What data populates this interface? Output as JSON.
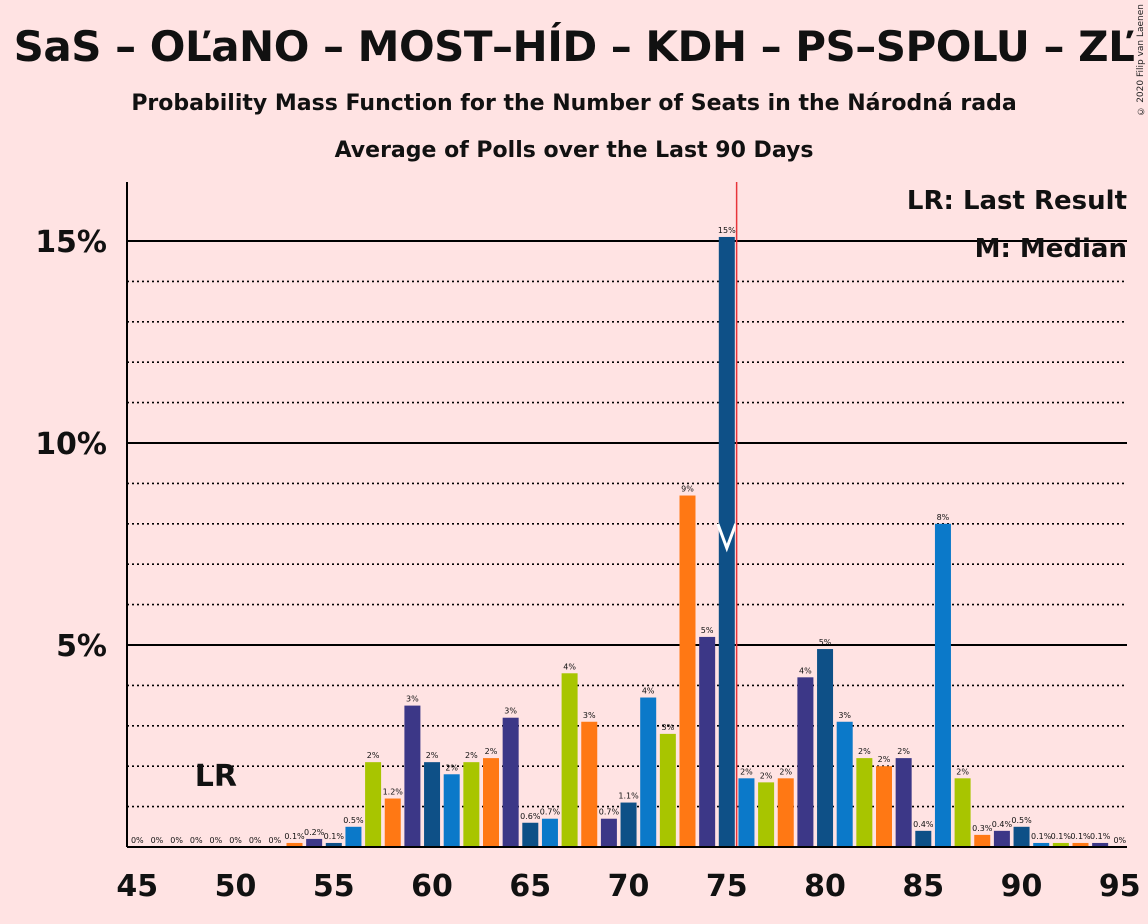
{
  "title": "SaS – OĽaNO – MOST–HÍD – KDH – PS–SPOLU – ZĽ",
  "subtitle1": "Probability Mass Function for the Number of Seats in the Národná rada",
  "subtitle2": "Average of Polls over the Last 90 Days",
  "copyright": "© 2020 Filip van Laenen",
  "legend": {
    "lr": "LR: Last Result",
    "m": "M: Median"
  },
  "lr_label": "LR",
  "chart_data": {
    "type": "bar",
    "x": [
      45,
      46,
      47,
      48,
      49,
      50,
      51,
      52,
      53,
      54,
      55,
      56,
      57,
      58,
      59,
      60,
      61,
      62,
      63,
      64,
      65,
      66,
      67,
      68,
      69,
      70,
      71,
      72,
      73,
      74,
      75,
      76,
      77,
      78,
      79,
      80,
      81,
      82,
      83,
      84,
      85,
      86,
      87,
      88,
      89,
      90,
      91,
      92,
      93,
      94,
      95
    ],
    "values": [
      0,
      0,
      0,
      0,
      0,
      0,
      0,
      0,
      0.1,
      0.2,
      0.1,
      0.5,
      2.1,
      1.2,
      3.5,
      2.1,
      1.8,
      2.1,
      2.2,
      3.2,
      0.6,
      0.7,
      4.3,
      3.1,
      0.7,
      1.1,
      3.7,
      2.8,
      8.7,
      5.2,
      15.1,
      1.7,
      1.6,
      1.7,
      4.2,
      4.9,
      3.1,
      2.2,
      2.0,
      2.2,
      0.4,
      8.0,
      1.7,
      0.3,
      0.4,
      0.5,
      0.1,
      0.1,
      0.1,
      0.1,
      0
    ],
    "labels": [
      "0%",
      "0%",
      "0%",
      "0%",
      "0%",
      "0%",
      "0%",
      "0%",
      "0.1%",
      "0.2%",
      "0.1%",
      "0.5%",
      "2%",
      "1.2%",
      "3%",
      "2%",
      "2%",
      "2%",
      "2%",
      "3%",
      "0.6%",
      "0.7%",
      "4%",
      "3%",
      "0.7%",
      "1.1%",
      "4%",
      "3%",
      "9%",
      "5%",
      "15%",
      "2%",
      "2%",
      "2%",
      "4%",
      "5%",
      "3%",
      "2%",
      "2%",
      "2%",
      "0.4%",
      "8%",
      "2%",
      "0.3%",
      "0.4%",
      "0.5%",
      "0.1%",
      "0.1%",
      "0.1%",
      "0.1%",
      "0%"
    ],
    "bar_colors": [
      "#0E5087",
      "#0B79C9",
      "#A8C500",
      "#FF7814",
      "#3C3787",
      "#0E5087",
      "#0B79C9",
      "#A8C500",
      "#FF7814",
      "#3C3787"
    ],
    "x_ticks": [
      "45",
      "50",
      "55",
      "60",
      "65",
      "70",
      "75",
      "80",
      "85",
      "90",
      "95"
    ],
    "y_ticks": [
      "5%",
      "10%",
      "15%"
    ],
    "ylim": [
      0,
      16.5
    ],
    "last_result_seats": 49,
    "median_seats": 75,
    "majority_line_seats": 76
  }
}
